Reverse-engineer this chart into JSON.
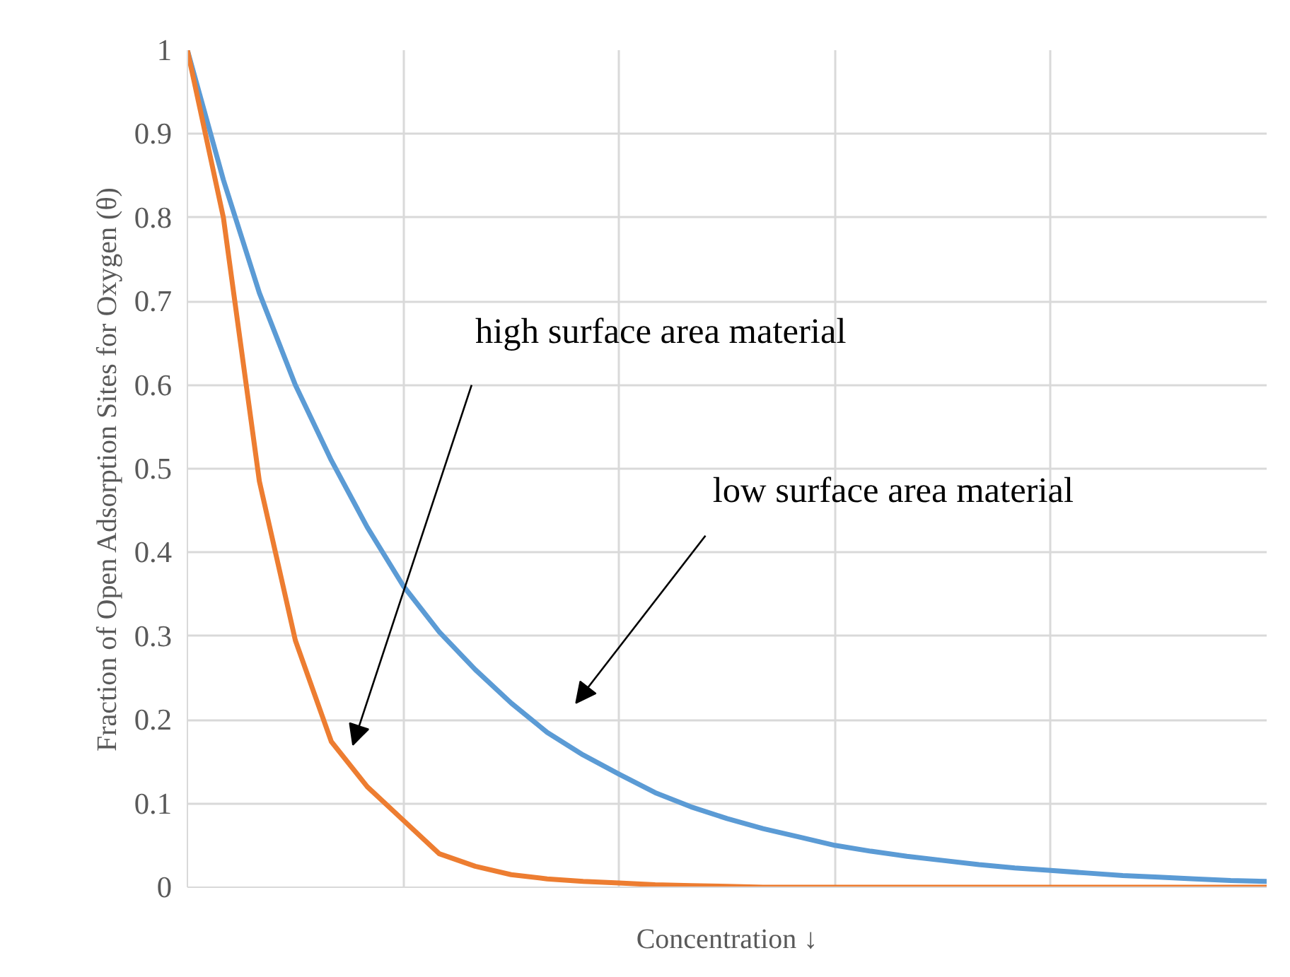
{
  "chart_data": {
    "type": "line",
    "xlabel": "Concentration ↓",
    "ylabel": "Fraction of Open Adsorption Sites for Oxygen (θ)",
    "categories": [
      null,
      null,
      null,
      null,
      null,
      null,
      null,
      null,
      null,
      null,
      null,
      null,
      null,
      null,
      null,
      null,
      null,
      null,
      null,
      null,
      null,
      null,
      null,
      null,
      null,
      null,
      null,
      null,
      null,
      null,
      null
    ],
    "series": [
      {
        "color": "#5b9bd5",
        "values": [
          1.0,
          0.845,
          0.71,
          0.6,
          0.51,
          0.43,
          0.36,
          0.305,
          0.26,
          0.22,
          0.185,
          0.158,
          0.135,
          0.113,
          0.096,
          0.082,
          0.07,
          0.06,
          0.05,
          0.043,
          0.037,
          0.032,
          0.027,
          0.023,
          0.02,
          0.017,
          0.014,
          0.012,
          0.01,
          0.008,
          0.007
        ]
      },
      {
        "color": "#ed7d31",
        "values": [
          1.0,
          0.8,
          0.485,
          0.295,
          0.174,
          0.12,
          0.08,
          0.04,
          0.025,
          0.015,
          0.01,
          0.007,
          0.005,
          0.003,
          0.002,
          0.001,
          0.0,
          0.0,
          0.0,
          0.0,
          0.0,
          0.0,
          0.0,
          0.0,
          0.0,
          0.0,
          0.0,
          0.0,
          0.0,
          0.0,
          0.0
        ]
      }
    ],
    "ylim": [
      0,
      1
    ],
    "yticks": [
      0,
      0.1,
      0.2,
      0.3,
      0.4,
      0.5,
      0.6,
      0.7,
      0.8,
      0.9,
      1
    ],
    "grid": true,
    "annotations": [
      "high surface area material",
      "low surface area material"
    ]
  }
}
